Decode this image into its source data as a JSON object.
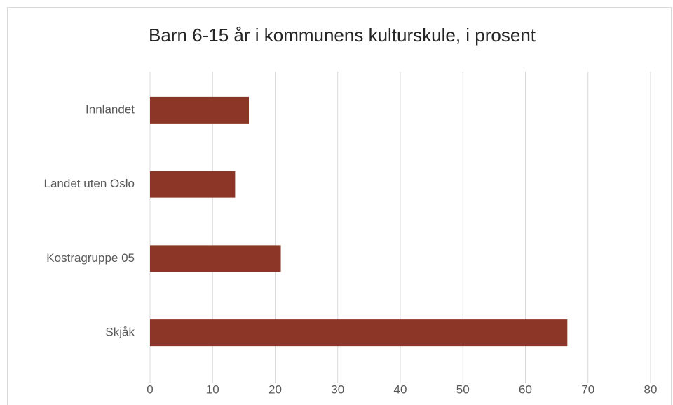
{
  "chart_data": {
    "type": "bar",
    "orientation": "horizontal",
    "title": "Barn 6-15 år i kommunens kulturskule, i prosent",
    "categories": [
      "Innlandet",
      "Landet uten Oslo",
      "Kostragruppe 05",
      "Skjåk"
    ],
    "values": [
      15.8,
      13.6,
      20.9,
      66.7
    ],
    "color": "#8b3626",
    "xlim": [
      0,
      80
    ],
    "xticks": [
      0,
      10,
      20,
      30,
      40,
      50,
      60,
      70,
      80
    ],
    "grid": true
  }
}
